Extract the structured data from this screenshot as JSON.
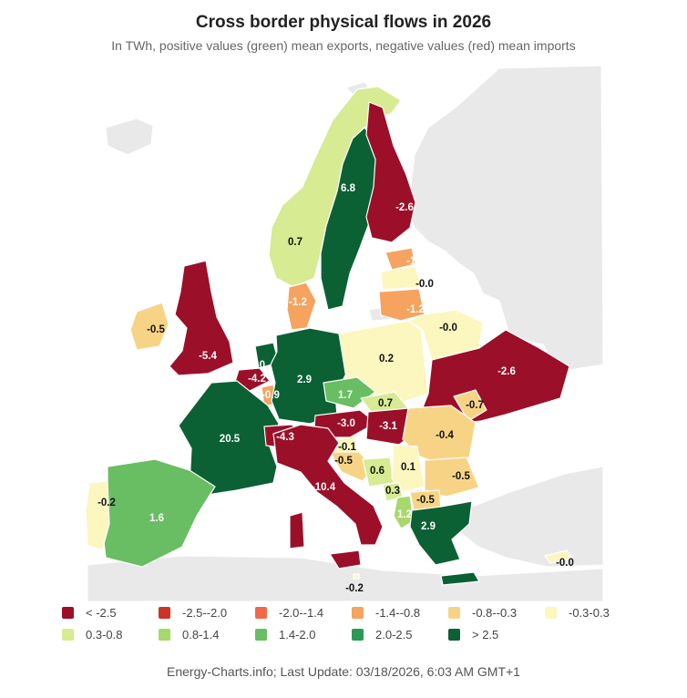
{
  "header": {
    "title": "Cross border physical flows in 2026",
    "subtitle": "In TWh, positive values (green) mean exports, negative values (red) mean imports"
  },
  "colors": {
    "c1": "#9b0f29",
    "c2": "#cf3328",
    "c3": "#ef6a47",
    "c4": "#f5a35f",
    "c5": "#f7d485",
    "c6": "#fcf6bf",
    "c7": "#d6eb92",
    "c8": "#a6d96a",
    "c9": "#69bd63",
    "c10": "#2a9a55",
    "c11": "#0b6134",
    "background_land": "#e9e9e9"
  },
  "countries": [
    {
      "id": "norway",
      "value": "0.7",
      "color": "c7"
    },
    {
      "id": "sweden",
      "value": "6.8",
      "color": "c11"
    },
    {
      "id": "finland",
      "value": "-2.6",
      "color": "c1"
    },
    {
      "id": "estonia",
      "value": "-1.0",
      "color": "c4"
    },
    {
      "id": "latvia",
      "value": "-0.0",
      "color": "c6"
    },
    {
      "id": "lithuania",
      "value": "-1.2",
      "color": "c4"
    },
    {
      "id": "denmark",
      "value": "-1.2",
      "color": "c4"
    },
    {
      "id": "ireland",
      "value": "-0.5",
      "color": "c5"
    },
    {
      "id": "uk",
      "value": "-5.4",
      "color": "c1"
    },
    {
      "id": "netherlands",
      "value": "4.0",
      "color": "c11"
    },
    {
      "id": "belgium",
      "value": "-4.2",
      "color": "c1"
    },
    {
      "id": "luxembourg",
      "value": "-0.9",
      "color": "c4"
    },
    {
      "id": "germany",
      "value": "2.9",
      "color": "c11"
    },
    {
      "id": "poland",
      "value": "0.2",
      "color": "c6"
    },
    {
      "id": "belarus",
      "value": "-0.0",
      "color": "c6"
    },
    {
      "id": "ukraine",
      "value": "-2.6",
      "color": "c1"
    },
    {
      "id": "czechia",
      "value": "1.7",
      "color": "c9"
    },
    {
      "id": "slovakia",
      "value": "0.7",
      "color": "c7"
    },
    {
      "id": "moldova",
      "value": "-0.7",
      "color": "c5"
    },
    {
      "id": "france",
      "value": "20.5",
      "color": "c11"
    },
    {
      "id": "switzerland",
      "value": "-4.3",
      "color": "c1"
    },
    {
      "id": "austria",
      "value": "-3.0",
      "color": "c1"
    },
    {
      "id": "hungary",
      "value": "-3.1",
      "color": "c1"
    },
    {
      "id": "romania",
      "value": "-0.4",
      "color": "c5"
    },
    {
      "id": "slovenia",
      "value": "-0.1",
      "color": "c6"
    },
    {
      "id": "croatia",
      "value": "-0.5",
      "color": "c5"
    },
    {
      "id": "bosnia",
      "value": "0.6",
      "color": "c7"
    },
    {
      "id": "serbia",
      "value": "0.1",
      "color": "c6"
    },
    {
      "id": "bulgaria",
      "value": "-0.5",
      "color": "c5"
    },
    {
      "id": "montenegro",
      "value": "0.3",
      "color": "c7"
    },
    {
      "id": "north_macedonia",
      "value": "-0.5",
      "color": "c5"
    },
    {
      "id": "albania",
      "value": "1.2",
      "color": "c8"
    },
    {
      "id": "greece",
      "value": "2.9",
      "color": "c11"
    },
    {
      "id": "italy",
      "value": "-10.4",
      "color": "c1"
    },
    {
      "id": "malta",
      "value": "-0.2",
      "color": "c6"
    },
    {
      "id": "cyprus",
      "value": "-0.0",
      "color": "c6"
    },
    {
      "id": "spain",
      "value": "1.6",
      "color": "c9"
    },
    {
      "id": "portugal",
      "value": "-0.2",
      "color": "c6"
    }
  ],
  "legend": {
    "items": [
      {
        "label": "< -2.5",
        "color": "c1"
      },
      {
        "label": "-2.5--2.0",
        "color": "c2"
      },
      {
        "label": "-2.0--1.4",
        "color": "c3"
      },
      {
        "label": "-1.4--0.8",
        "color": "c4"
      },
      {
        "label": "-0.8--0.3",
        "color": "c5"
      },
      {
        "label": "-0.3-0.3",
        "color": "c6"
      },
      {
        "label": "0.3-0.8",
        "color": "c7"
      },
      {
        "label": "0.8-1.4",
        "color": "c8"
      },
      {
        "label": "1.4-2.0",
        "color": "c9"
      },
      {
        "label": "2.0-2.5",
        "color": "c10"
      },
      {
        "label": "> 2.5",
        "color": "c11"
      }
    ]
  },
  "footer": {
    "text": "Energy-Charts.info; Last Update: 03/18/2026, 6:03 AM GMT+1"
  }
}
